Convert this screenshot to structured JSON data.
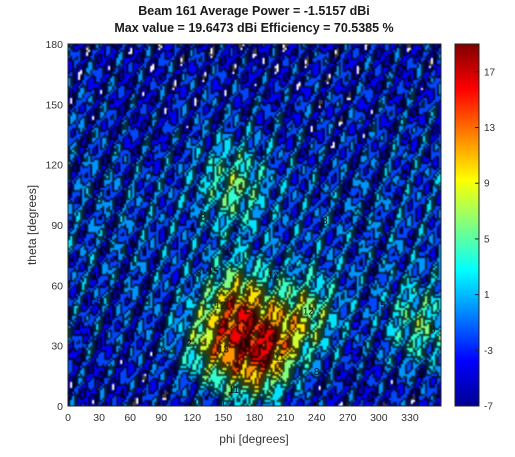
{
  "chart_data": {
    "type": "heatmap",
    "title": "Beam 161 Average Power = -1.5157 dBi",
    "subtitle": "Max value = 19.6473 dBi Efficiency = 70.5385 %",
    "xlabel": "phi [degrees]",
    "ylabel": "theta [degrees]",
    "xlim": [
      0,
      360
    ],
    "ylim": [
      0,
      180
    ],
    "xticks": [
      "0",
      "30",
      "60",
      "90",
      "120",
      "150",
      "180",
      "210",
      "240",
      "270",
      "300",
      "330"
    ],
    "yticks": [
      "0",
      "30",
      "60",
      "90",
      "120",
      "150",
      "180"
    ],
    "colorbar": {
      "range": [
        -7,
        19
      ],
      "ticks": [
        "-7",
        "-3",
        "1",
        "5",
        "9",
        "13",
        "17"
      ]
    },
    "contour_step": 2,
    "colormap": [
      "#00008f",
      "#0000ff",
      "#0080ff",
      "#00ffff",
      "#80ff80",
      "#ffff00",
      "#ff8000",
      "#ff0000",
      "#800000"
    ],
    "features": [
      {
        "phi": 165,
        "theta": 50,
        "value": 17
      },
      {
        "phi": 195,
        "theta": 30,
        "value": 17
      },
      {
        "phi": 140,
        "theta": 30,
        "value": 13
      },
      {
        "phi": 230,
        "theta": 45,
        "value": 11
      },
      {
        "phi": 160,
        "theta": 110,
        "value": 9
      },
      {
        "phi": 175,
        "theta": 18,
        "value": 11
      },
      {
        "phi": 340,
        "theta": 40,
        "value": 9
      },
      {
        "phi": 80,
        "theta": 140,
        "value": -5
      },
      {
        "phi": 260,
        "theta": 135,
        "value": -5
      },
      {
        "phi": 180,
        "theta": 178,
        "value": -5
      }
    ],
    "contour_labels": [
      {
        "phi": 92,
        "theta": 27,
        "text": "8"
      },
      {
        "phi": 114,
        "theta": 31,
        "text": "12"
      },
      {
        "phi": 150,
        "theta": 28,
        "text": "13"
      },
      {
        "phi": 126,
        "theta": 66,
        "text": "8"
      },
      {
        "phi": 140,
        "theta": 67,
        "text": "15"
      },
      {
        "phi": 153,
        "theta": 78,
        "text": "14"
      },
      {
        "phi": 198,
        "theta": 65,
        "text": "12"
      },
      {
        "phi": 147,
        "theta": 50,
        "text": "12"
      },
      {
        "phi": 232,
        "theta": 47,
        "text": "12"
      },
      {
        "phi": 204,
        "theta": 24,
        "text": "11"
      },
      {
        "phi": 160,
        "theta": 8,
        "text": "11"
      },
      {
        "phi": 128,
        "theta": 2,
        "text": "8"
      },
      {
        "phi": 240,
        "theta": 17,
        "text": "8"
      },
      {
        "phi": 270,
        "theta": 2,
        "text": "5"
      },
      {
        "phi": 30,
        "theta": 52,
        "text": "5"
      },
      {
        "phi": 28,
        "theta": 10,
        "text": "8"
      },
      {
        "phi": 130,
        "theta": 95,
        "text": "8"
      },
      {
        "phi": 248,
        "theta": 92,
        "text": "8"
      },
      {
        "phi": 304,
        "theta": 50,
        "text": "5"
      },
      {
        "phi": 352,
        "theta": 38,
        "text": "8"
      },
      {
        "phi": 44,
        "theta": 166,
        "text": "2"
      },
      {
        "phi": 292,
        "theta": 168,
        "text": "2"
      },
      {
        "phi": 40,
        "theta": 118,
        "text": "2"
      },
      {
        "phi": 330,
        "theta": 130,
        "text": "5"
      }
    ]
  }
}
